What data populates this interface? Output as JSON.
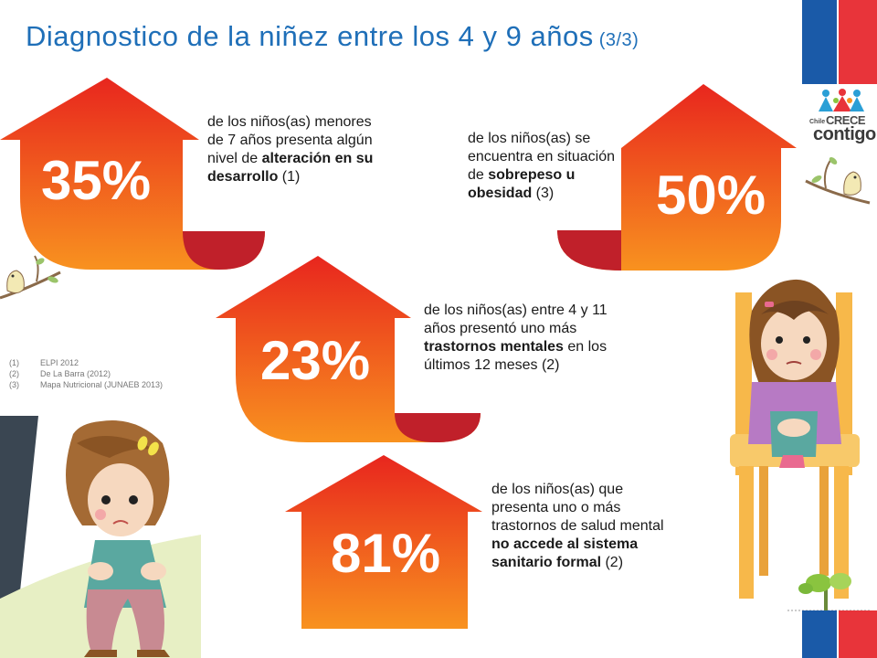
{
  "title": {
    "main": "Diagnostico de la niñez entre los 4 y 9 años",
    "page": "(3/3)"
  },
  "logo": {
    "chile": "Chile",
    "crece": "CRECE",
    "contigo": "contigo"
  },
  "colors": {
    "title": "#1f6fb8",
    "arrow_top": "#e8261e",
    "arrow_bottom": "#f8921f",
    "arrow_fold": "#c0202a",
    "flag_blue": "#1a5aa8",
    "flag_red": "#e8343a"
  },
  "stats": [
    {
      "value": "35%",
      "pre": "de los niños(as) menores de 7 años presenta algún nivel de ",
      "bold": "alteración en su desarrollo",
      "post": " (1)"
    },
    {
      "value": "50%",
      "pre": "de los niños(as) se encuentra en situación de ",
      "bold": "sobrepeso u obesidad",
      "post": " (3)"
    },
    {
      "value": "23%",
      "pre": "de los niños(as) entre 4 y 11 años presentó uno más ",
      "bold": "trastornos mentales",
      "post": " en los últimos 12 meses (2)"
    },
    {
      "value": "81%",
      "pre": "de los niños(as) que presenta uno o más trastornos de salud mental ",
      "bold": "no accede al sistema sanitario formal",
      "post": " (2)"
    }
  ],
  "references": [
    {
      "num": "(1)",
      "text": "ELPI 2012"
    },
    {
      "num": "(2)",
      "text": "De La Barra (2012)"
    },
    {
      "num": "(3)",
      "text": "Mapa Nutricional (JUNAEB 2013)"
    }
  ]
}
